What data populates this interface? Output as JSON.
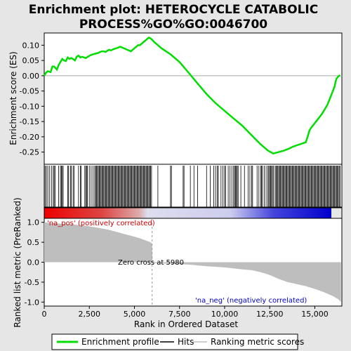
{
  "title_line1": "Enrichment plot: HETEROCYCLE CATABOLIC",
  "title_line2": "PROCESS%GO%GO:0046700",
  "chart_data": {
    "type": "line",
    "n_genes": 16500,
    "zero_cross_rank": 5980,
    "top_panel": {
      "ylabel": "Enrichment score (ES)",
      "ylim": [
        -0.29,
        0.14
      ],
      "yticks": [
        0.1,
        0.05,
        0.0,
        -0.05,
        -0.1,
        -0.15,
        -0.2,
        -0.25
      ],
      "ytick_labels": [
        "0.10",
        "0.05",
        "0.00",
        "-0.05",
        "-0.10",
        "-0.15",
        "-0.20",
        "-0.25"
      ],
      "series": [
        {
          "name": "Enrichment profile",
          "color": "#00dd00",
          "x": [
            0,
            100,
            200,
            350,
            450,
            550,
            700,
            800,
            900,
            1000,
            1100,
            1200,
            1300,
            1400,
            1500,
            1600,
            1700,
            1800,
            1900,
            2000,
            2100,
            2200,
            2300,
            2500,
            2600,
            2700,
            2800,
            2900,
            3000,
            3100,
            3200,
            3300,
            3400,
            3500,
            3600,
            3700,
            3800,
            3900,
            4000,
            4100,
            4200,
            4300,
            4400,
            4500,
            4600,
            4700,
            4800,
            4900,
            5000,
            5100,
            5200,
            5300,
            5400,
            5500,
            5600,
            5700,
            5800,
            5900,
            5980,
            6100,
            6500,
            7000,
            7500,
            8000,
            8500,
            9000,
            9500,
            10000,
            10500,
            11000,
            11500,
            12000,
            12400,
            12700,
            12800,
            13000,
            13300,
            13600,
            13800,
            14000,
            14200,
            14400,
            14500,
            14600,
            14700,
            14800,
            15000,
            15200,
            15400,
            15500,
            15600,
            15700,
            15800,
            15900,
            16000,
            16100,
            16150,
            16200,
            16300,
            16400
          ],
          "y": [
            0.0,
            0.01,
            0.015,
            0.012,
            0.03,
            0.03,
            0.02,
            0.035,
            0.045,
            0.055,
            0.05,
            0.048,
            0.06,
            0.055,
            0.058,
            0.055,
            0.05,
            0.062,
            0.066,
            0.06,
            0.062,
            0.06,
            0.058,
            0.065,
            0.068,
            0.07,
            0.072,
            0.073,
            0.075,
            0.078,
            0.08,
            0.08,
            0.078,
            0.082,
            0.085,
            0.083,
            0.086,
            0.088,
            0.09,
            0.092,
            0.095,
            0.093,
            0.09,
            0.088,
            0.085,
            0.083,
            0.08,
            0.085,
            0.09,
            0.095,
            0.1,
            0.1,
            0.105,
            0.11,
            0.115,
            0.12,
            0.125,
            0.122,
            0.118,
            0.11,
            0.09,
            0.07,
            0.045,
            0.01,
            -0.025,
            -0.06,
            -0.09,
            -0.115,
            -0.14,
            -0.165,
            -0.195,
            -0.225,
            -0.245,
            -0.255,
            -0.253,
            -0.25,
            -0.245,
            -0.238,
            -0.232,
            -0.228,
            -0.224,
            -0.22,
            -0.218,
            -0.2,
            -0.18,
            -0.17,
            -0.155,
            -0.14,
            -0.125,
            -0.115,
            -0.105,
            -0.095,
            -0.08,
            -0.065,
            -0.05,
            -0.035,
            -0.02,
            -0.01,
            -0.002,
            0.002
          ]
        }
      ]
    },
    "hit_ranks": [
      50,
      120,
      200,
      300,
      400,
      500,
      550,
      600,
      800,
      900,
      950,
      1000,
      1050,
      1300,
      1350,
      1450,
      1500,
      1600,
      1650,
      1900,
      2000,
      2050,
      2250,
      2300,
      2350,
      2400,
      2500,
      2600,
      2700,
      2800,
      2850,
      2900,
      2950,
      3000,
      3050,
      3100,
      3150,
      3200,
      3250,
      3300,
      3350,
      3400,
      3450,
      3500,
      3550,
      3600,
      3650,
      3700,
      3750,
      3800,
      3850,
      3900,
      3950,
      4000,
      4050,
      4100,
      4150,
      4200,
      4250,
      4300,
      4350,
      4400,
      4450,
      4500,
      4550,
      4600,
      4650,
      4700,
      4750,
      4800,
      4850,
      4900,
      4950,
      5000,
      5050,
      5100,
      5150,
      5200,
      5250,
      5300,
      5350,
      5400,
      5450,
      5500,
      5550,
      5600,
      5650,
      5700,
      5750,
      5800,
      5850,
      5900,
      5950,
      6300,
      7000,
      7050,
      7700,
      7750,
      8100,
      8300,
      8500,
      9000,
      9200,
      9400,
      9500,
      9600,
      9650,
      9800,
      9900,
      10000,
      10050,
      10200,
      10300,
      10400,
      10500,
      10550,
      10600,
      10650,
      10700,
      10750,
      10900,
      11100,
      11300,
      11400,
      11500,
      11550,
      11800,
      11900,
      12000,
      12050,
      12100,
      12200,
      12300,
      12400,
      12450,
      12500,
      12550,
      12600,
      12650,
      12700,
      12800,
      12850,
      12900,
      12950,
      13000,
      13050,
      13100,
      13150,
      13200,
      13250,
      13300,
      13350,
      13400,
      13450,
      13500,
      13550,
      13600,
      13650,
      13700,
      13750,
      13800,
      13850,
      13900,
      13950,
      14000,
      14050,
      14100,
      14150,
      14200,
      14250,
      14300,
      14350,
      14400,
      14450,
      14500,
      14550,
      14600,
      14650,
      14700,
      14750,
      14800,
      14850,
      14900,
      14950,
      15000,
      15050,
      15100,
      15150,
      15200,
      15250,
      15300,
      15350,
      15400,
      15450,
      15500,
      15550,
      15600,
      15650,
      15700,
      15750,
      15800,
      15850,
      15900,
      15950,
      16000,
      16050,
      16100,
      16150,
      16200,
      16250,
      16300,
      16350,
      16400
    ],
    "bottom_panel": {
      "ylabel": "Ranked list metric (PreRanked)",
      "xlabel": "Rank in Ordered Dataset",
      "ylim": [
        -1.1,
        1.1
      ],
      "yticks": [
        1.0,
        0.5,
        0.0,
        -0.5,
        -1.0
      ],
      "ytick_labels": [
        "1.0",
        "0.5",
        "0.0",
        "-0.5",
        "-1.0"
      ],
      "xticks": [
        0,
        2500,
        5000,
        7500,
        10000,
        12500,
        15000
      ],
      "xtick_labels": [
        "0",
        "2,500",
        "5,000",
        "7,500",
        "10,000",
        "12,500",
        "15,000"
      ],
      "metric_profile": {
        "x": [
          0,
          300,
          800,
          1500,
          2000,
          2500,
          3000,
          3500,
          4000,
          4500,
          5000,
          5300,
          5600,
          5900,
          5980,
          6000,
          7000,
          8000,
          9000,
          10000,
          11000,
          11500,
          12000,
          12500,
          13000,
          13500,
          14000,
          14500,
          15000,
          15500,
          16000,
          16300,
          16450
        ],
        "y": [
          1.0,
          0.98,
          0.97,
          0.95,
          0.93,
          0.9,
          0.86,
          0.82,
          0.76,
          0.7,
          0.64,
          0.6,
          0.55,
          0.5,
          0.45,
          -0.02,
          -0.04,
          -0.06,
          -0.1,
          -0.13,
          -0.18,
          -0.2,
          -0.25,
          -0.32,
          -0.42,
          -0.5,
          -0.55,
          -0.6,
          -0.67,
          -0.75,
          -0.85,
          -0.93,
          -1.0
        ]
      },
      "annotations": {
        "pos": "'na_pos' (positively correlated)",
        "neg": "'na_neg' (negatively correlated)",
        "zero_cross": "Zero cross at 5980"
      }
    },
    "colors": {
      "enrichment": "#00dd00",
      "hits": "#000000",
      "metric_fill": "#bebebe",
      "pos_text": "#cc0000",
      "neg_text": "#0000cc"
    }
  },
  "legend": {
    "items": [
      {
        "label": "Enrichment profile",
        "icon": "green-line"
      },
      {
        "label": "Hits",
        "icon": "black-line"
      },
      {
        "label": "Ranking metric scores",
        "icon": "gray-line"
      }
    ]
  }
}
